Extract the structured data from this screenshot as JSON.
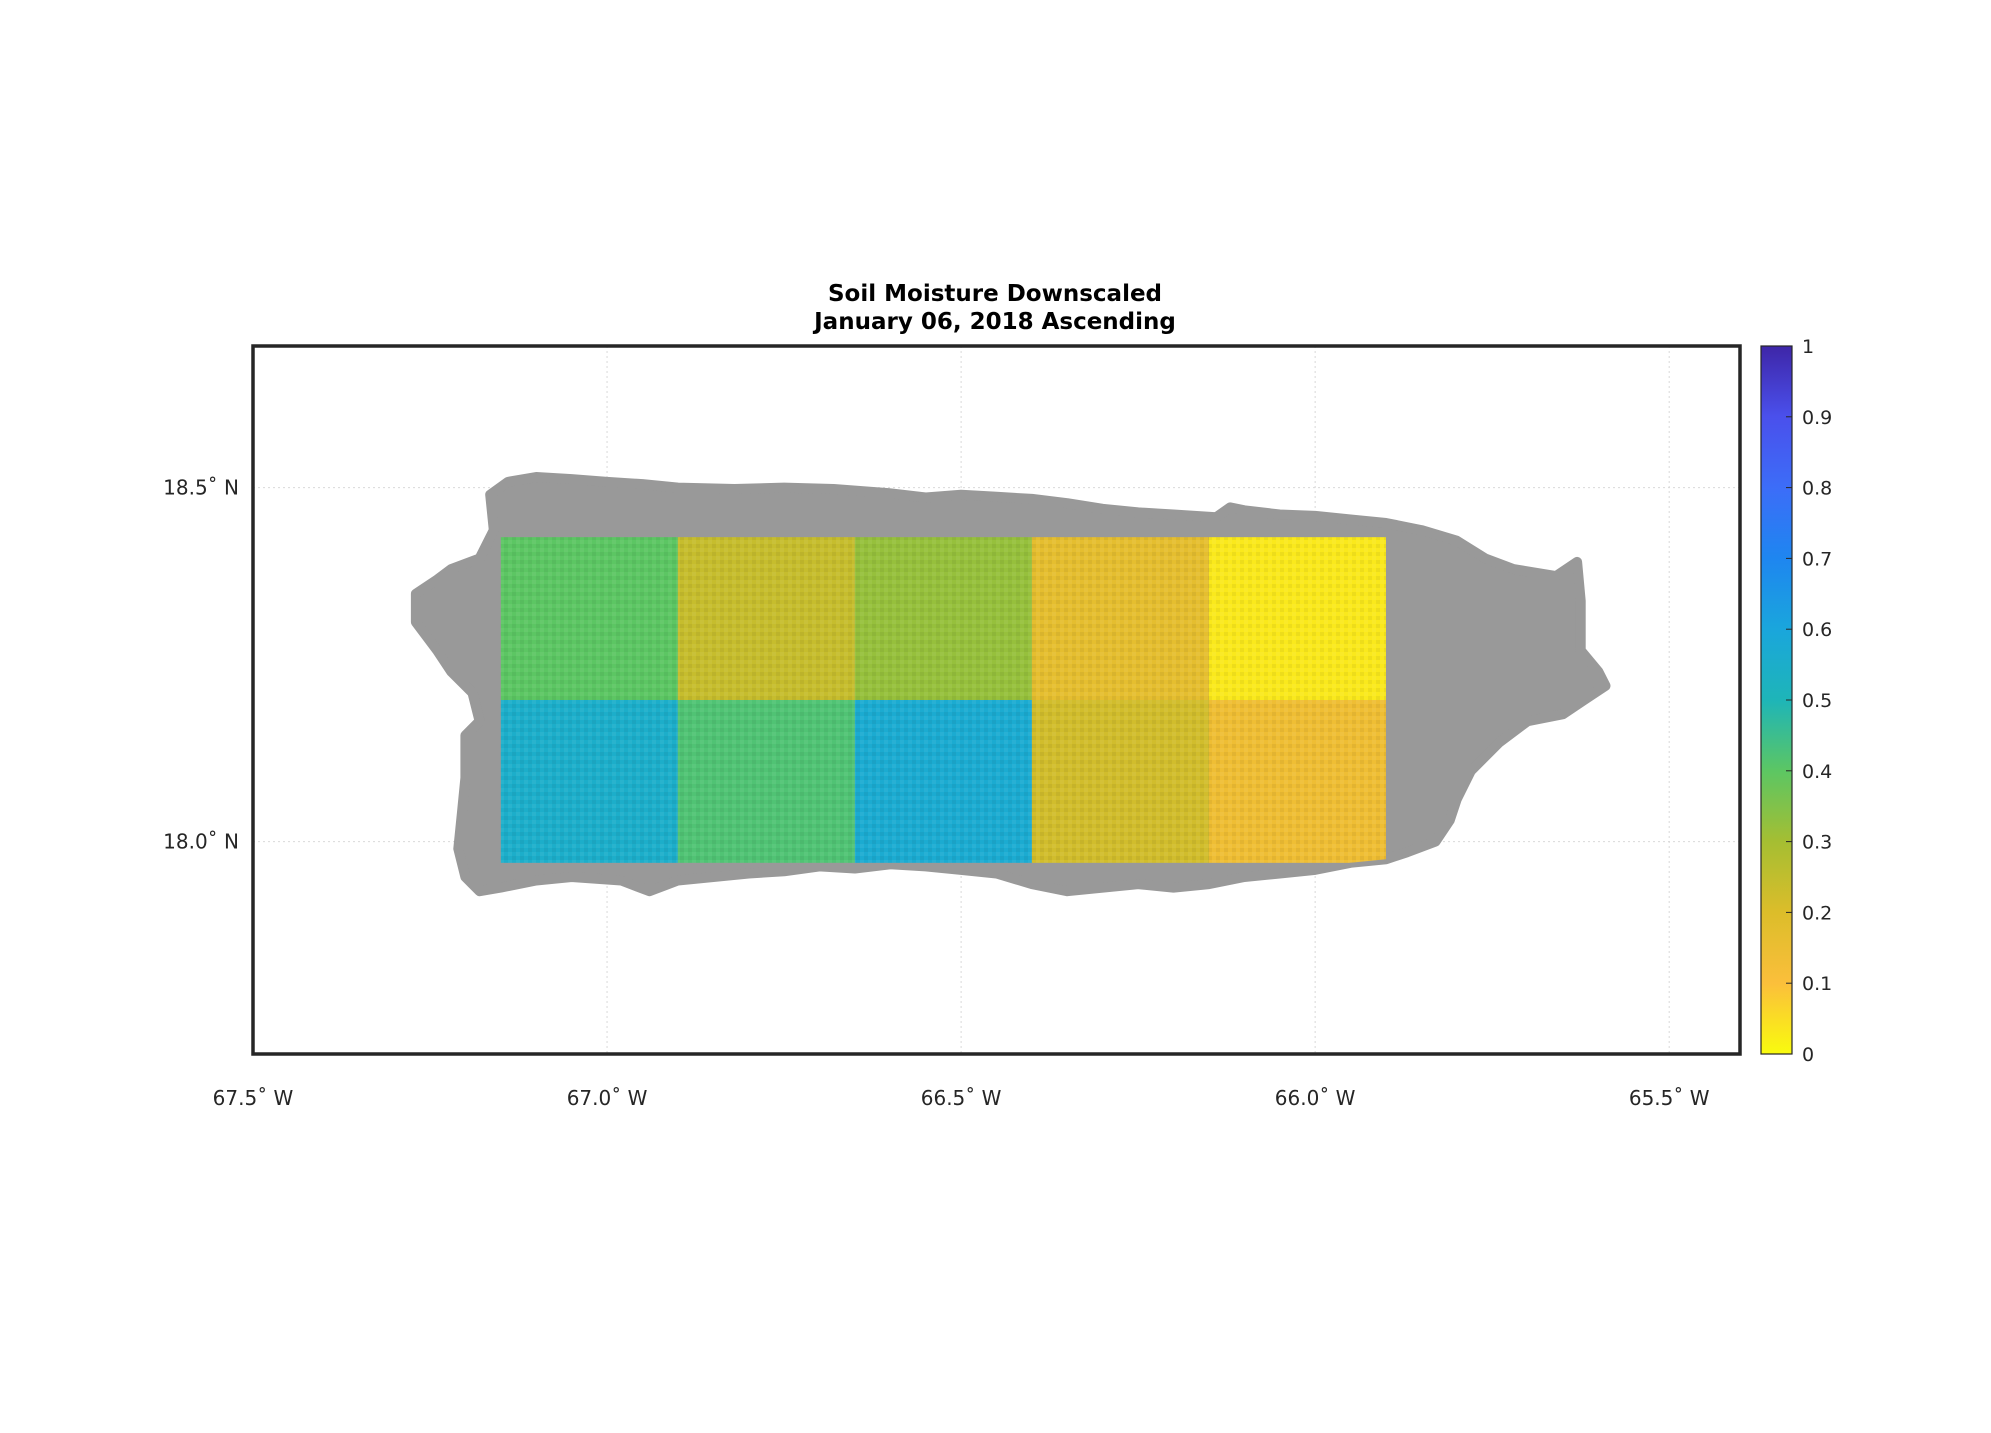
{
  "figure": {
    "title_line1": "Soil Moisture Downscaled",
    "title_line2": "January 06, 2018 Ascending"
  },
  "map": {
    "lon_range": [
      -67.5,
      -65.4
    ],
    "lat_range": [
      17.7,
      18.7
    ],
    "grid": true,
    "land_color": "#999999",
    "frame_color": "#262626",
    "grid_color": "#d9d9d9",
    "lon_ticks": [
      {
        "value": -67.5,
        "label": "67.5˚ W"
      },
      {
        "value": -67.0,
        "label": "67.0˚ W"
      },
      {
        "value": -66.5,
        "label": "66.5˚ W"
      },
      {
        "value": -66.0,
        "label": "66.0˚ W"
      },
      {
        "value": -65.5,
        "label": "65.5˚ W"
      }
    ],
    "lat_ticks": [
      {
        "value": 18.5,
        "label": "18.5˚ N"
      },
      {
        "value": 18.0,
        "label": "18.0˚ N"
      }
    ],
    "land_outline": [
      [
        -67.24,
        18.37
      ],
      [
        -67.22,
        18.385
      ],
      [
        -67.18,
        18.4
      ],
      [
        -67.16,
        18.44
      ],
      [
        -67.165,
        18.49
      ],
      [
        -67.14,
        18.508
      ],
      [
        -67.1,
        18.515
      ],
      [
        -67.05,
        18.512
      ],
      [
        -67.0,
        18.508
      ],
      [
        -66.95,
        18.505
      ],
      [
        -66.9,
        18.5
      ],
      [
        -66.82,
        18.498
      ],
      [
        -66.75,
        18.5
      ],
      [
        -66.68,
        18.498
      ],
      [
        -66.6,
        18.492
      ],
      [
        -66.55,
        18.486
      ],
      [
        -66.5,
        18.49
      ],
      [
        -66.45,
        18.487
      ],
      [
        -66.4,
        18.484
      ],
      [
        -66.35,
        18.478
      ],
      [
        -66.3,
        18.47
      ],
      [
        -66.25,
        18.465
      ],
      [
        -66.2,
        18.462
      ],
      [
        -66.14,
        18.458
      ],
      [
        -66.12,
        18.472
      ],
      [
        -66.1,
        18.468
      ],
      [
        -66.05,
        18.462
      ],
      [
        -66.0,
        18.46
      ],
      [
        -65.95,
        18.455
      ],
      [
        -65.9,
        18.45
      ],
      [
        -65.85,
        18.44
      ],
      [
        -65.8,
        18.425
      ],
      [
        -65.76,
        18.4
      ],
      [
        -65.72,
        18.385
      ],
      [
        -65.66,
        18.375
      ],
      [
        -65.63,
        18.395
      ],
      [
        -65.625,
        18.34
      ],
      [
        -65.625,
        18.27
      ],
      [
        -65.6,
        18.24
      ],
      [
        -65.59,
        18.22
      ],
      [
        -65.62,
        18.2
      ],
      [
        -65.65,
        18.18
      ],
      [
        -65.7,
        18.17
      ],
      [
        -65.74,
        18.14
      ],
      [
        -65.78,
        18.1
      ],
      [
        -65.8,
        18.06
      ],
      [
        -65.81,
        18.03
      ],
      [
        -65.83,
        18.0
      ],
      [
        -65.87,
        17.985
      ],
      [
        -65.9,
        17.975
      ],
      [
        -65.95,
        17.97
      ],
      [
        -66.0,
        17.96
      ],
      [
        -66.05,
        17.955
      ],
      [
        -66.1,
        17.95
      ],
      [
        -66.15,
        17.94
      ],
      [
        -66.2,
        17.935
      ],
      [
        -66.25,
        17.94
      ],
      [
        -66.3,
        17.935
      ],
      [
        -66.35,
        17.93
      ],
      [
        -66.4,
        17.94
      ],
      [
        -66.45,
        17.955
      ],
      [
        -66.5,
        17.96
      ],
      [
        -66.55,
        17.965
      ],
      [
        -66.6,
        17.968
      ],
      [
        -66.65,
        17.962
      ],
      [
        -66.7,
        17.965
      ],
      [
        -66.75,
        17.958
      ],
      [
        -66.8,
        17.955
      ],
      [
        -66.85,
        17.95
      ],
      [
        -66.9,
        17.945
      ],
      [
        -66.94,
        17.93
      ],
      [
        -66.98,
        17.945
      ],
      [
        -67.05,
        17.95
      ],
      [
        -67.1,
        17.945
      ],
      [
        -67.15,
        17.935
      ],
      [
        -67.18,
        17.93
      ],
      [
        -67.2,
        17.95
      ],
      [
        -67.21,
        17.99
      ],
      [
        -67.205,
        18.04
      ],
      [
        -67.2,
        18.09
      ],
      [
        -67.2,
        18.15
      ],
      [
        -67.18,
        18.17
      ],
      [
        -67.19,
        18.21
      ],
      [
        -67.22,
        18.24
      ],
      [
        -67.24,
        18.27
      ],
      [
        -67.27,
        18.31
      ],
      [
        -67.27,
        18.35
      ]
    ],
    "colorbar": {
      "min": 0,
      "max": 1,
      "tick_labels": [
        "0",
        "0.1",
        "0.2",
        "0.3",
        "0.4",
        "0.5",
        "0.6",
        "0.7",
        "0.8",
        "0.9",
        "1"
      ],
      "colormap": [
        "#f9fb0e",
        "#fbbf3b",
        "#dcbd2a",
        "#a5be32",
        "#5cc663",
        "#1eb5b8",
        "#1aa6dc",
        "#1e86f0",
        "#3c6df8",
        "#4a50ec",
        "#3e26a8"
      ]
    },
    "tiles": [
      {
        "lon": [
          -67.15,
          -66.9
        ],
        "lat": [
          18.2,
          18.43
        ],
        "value": 0.4
      },
      {
        "lon": [
          -66.9,
          -66.65
        ],
        "lat": [
          18.2,
          18.43
        ],
        "value": 0.24
      },
      {
        "lon": [
          -66.65,
          -66.4
        ],
        "lat": [
          18.2,
          18.43
        ],
        "value": 0.32
      },
      {
        "lon": [
          -66.4,
          -66.15
        ],
        "lat": [
          18.2,
          18.43
        ],
        "value": 0.17
      },
      {
        "lon": [
          -66.15,
          -65.9
        ],
        "lat": [
          18.2,
          18.43
        ],
        "value": 0.03
      },
      {
        "lon": [
          -67.15,
          -66.9
        ],
        "lat": [
          17.97,
          18.2
        ],
        "value": 0.55
      },
      {
        "lon": [
          -66.9,
          -66.65
        ],
        "lat": [
          17.97,
          18.2
        ],
        "value": 0.42
      },
      {
        "lon": [
          -66.65,
          -66.4
        ],
        "lat": [
          17.97,
          18.2
        ],
        "value": 0.57
      },
      {
        "lon": [
          -66.4,
          -66.15
        ],
        "lat": [
          17.97,
          18.2
        ],
        "value": 0.22
      },
      {
        "lon": [
          -66.15,
          -65.9
        ],
        "lat": [
          17.97,
          18.2
        ],
        "value": 0.14
      }
    ]
  }
}
